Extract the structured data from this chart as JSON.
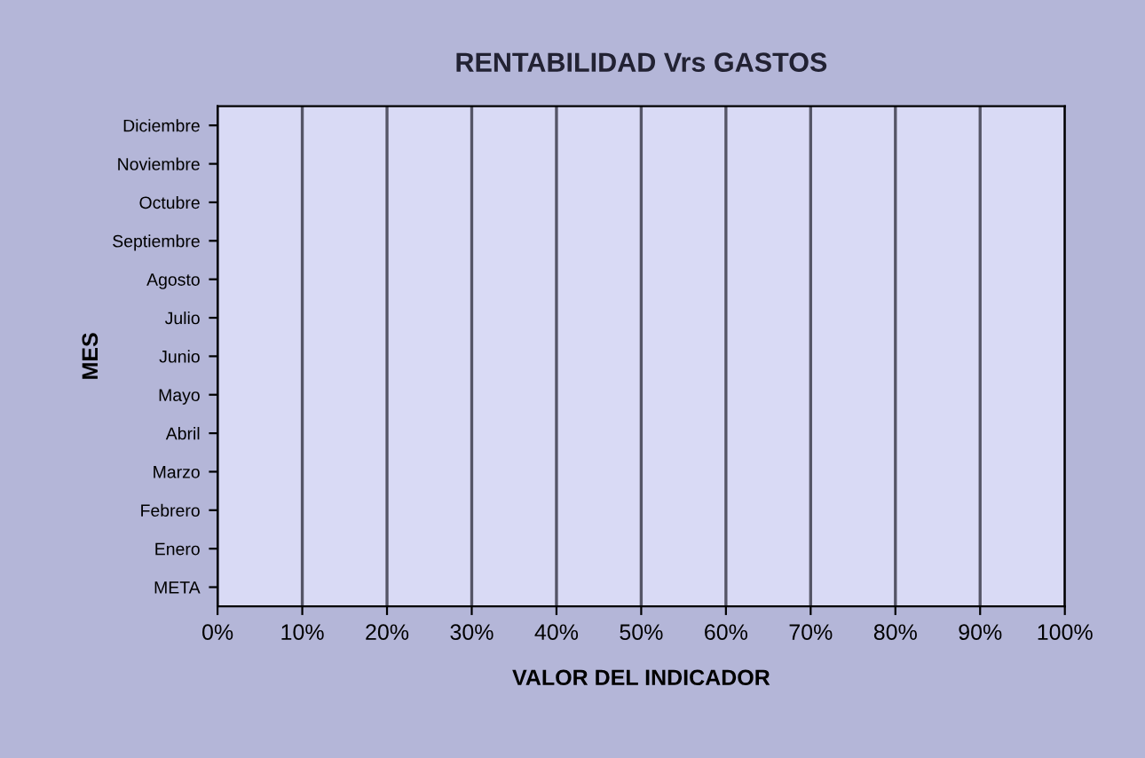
{
  "chart_data": {
    "type": "bar",
    "orientation": "horizontal",
    "title": "RENTABILIDAD Vrs GASTOS",
    "xlabel": "VALOR DEL INDICADOR",
    "ylabel": "MES",
    "categories": [
      "Diciembre",
      "Noviembre",
      "Octubre",
      "Septiembre",
      "Agosto",
      "Julio",
      "Junio",
      "Mayo",
      "Abril",
      "Marzo",
      "Febrero",
      "Enero",
      "META"
    ],
    "values": [
      null,
      null,
      null,
      null,
      null,
      null,
      null,
      null,
      null,
      null,
      null,
      null,
      null
    ],
    "xlim": [
      0,
      100
    ],
    "xticks": [
      {
        "value": 0,
        "label": "0%"
      },
      {
        "value": 10,
        "label": "10%"
      },
      {
        "value": 20,
        "label": "20%"
      },
      {
        "value": 30,
        "label": "30%"
      },
      {
        "value": 40,
        "label": "40%"
      },
      {
        "value": 50,
        "label": "50%"
      },
      {
        "value": 60,
        "label": "60%"
      },
      {
        "value": 70,
        "label": "70%"
      },
      {
        "value": 80,
        "label": "80%"
      },
      {
        "value": 90,
        "label": "90%"
      },
      {
        "value": 100,
        "label": "100%"
      }
    ],
    "grid": "x",
    "legend": false
  }
}
